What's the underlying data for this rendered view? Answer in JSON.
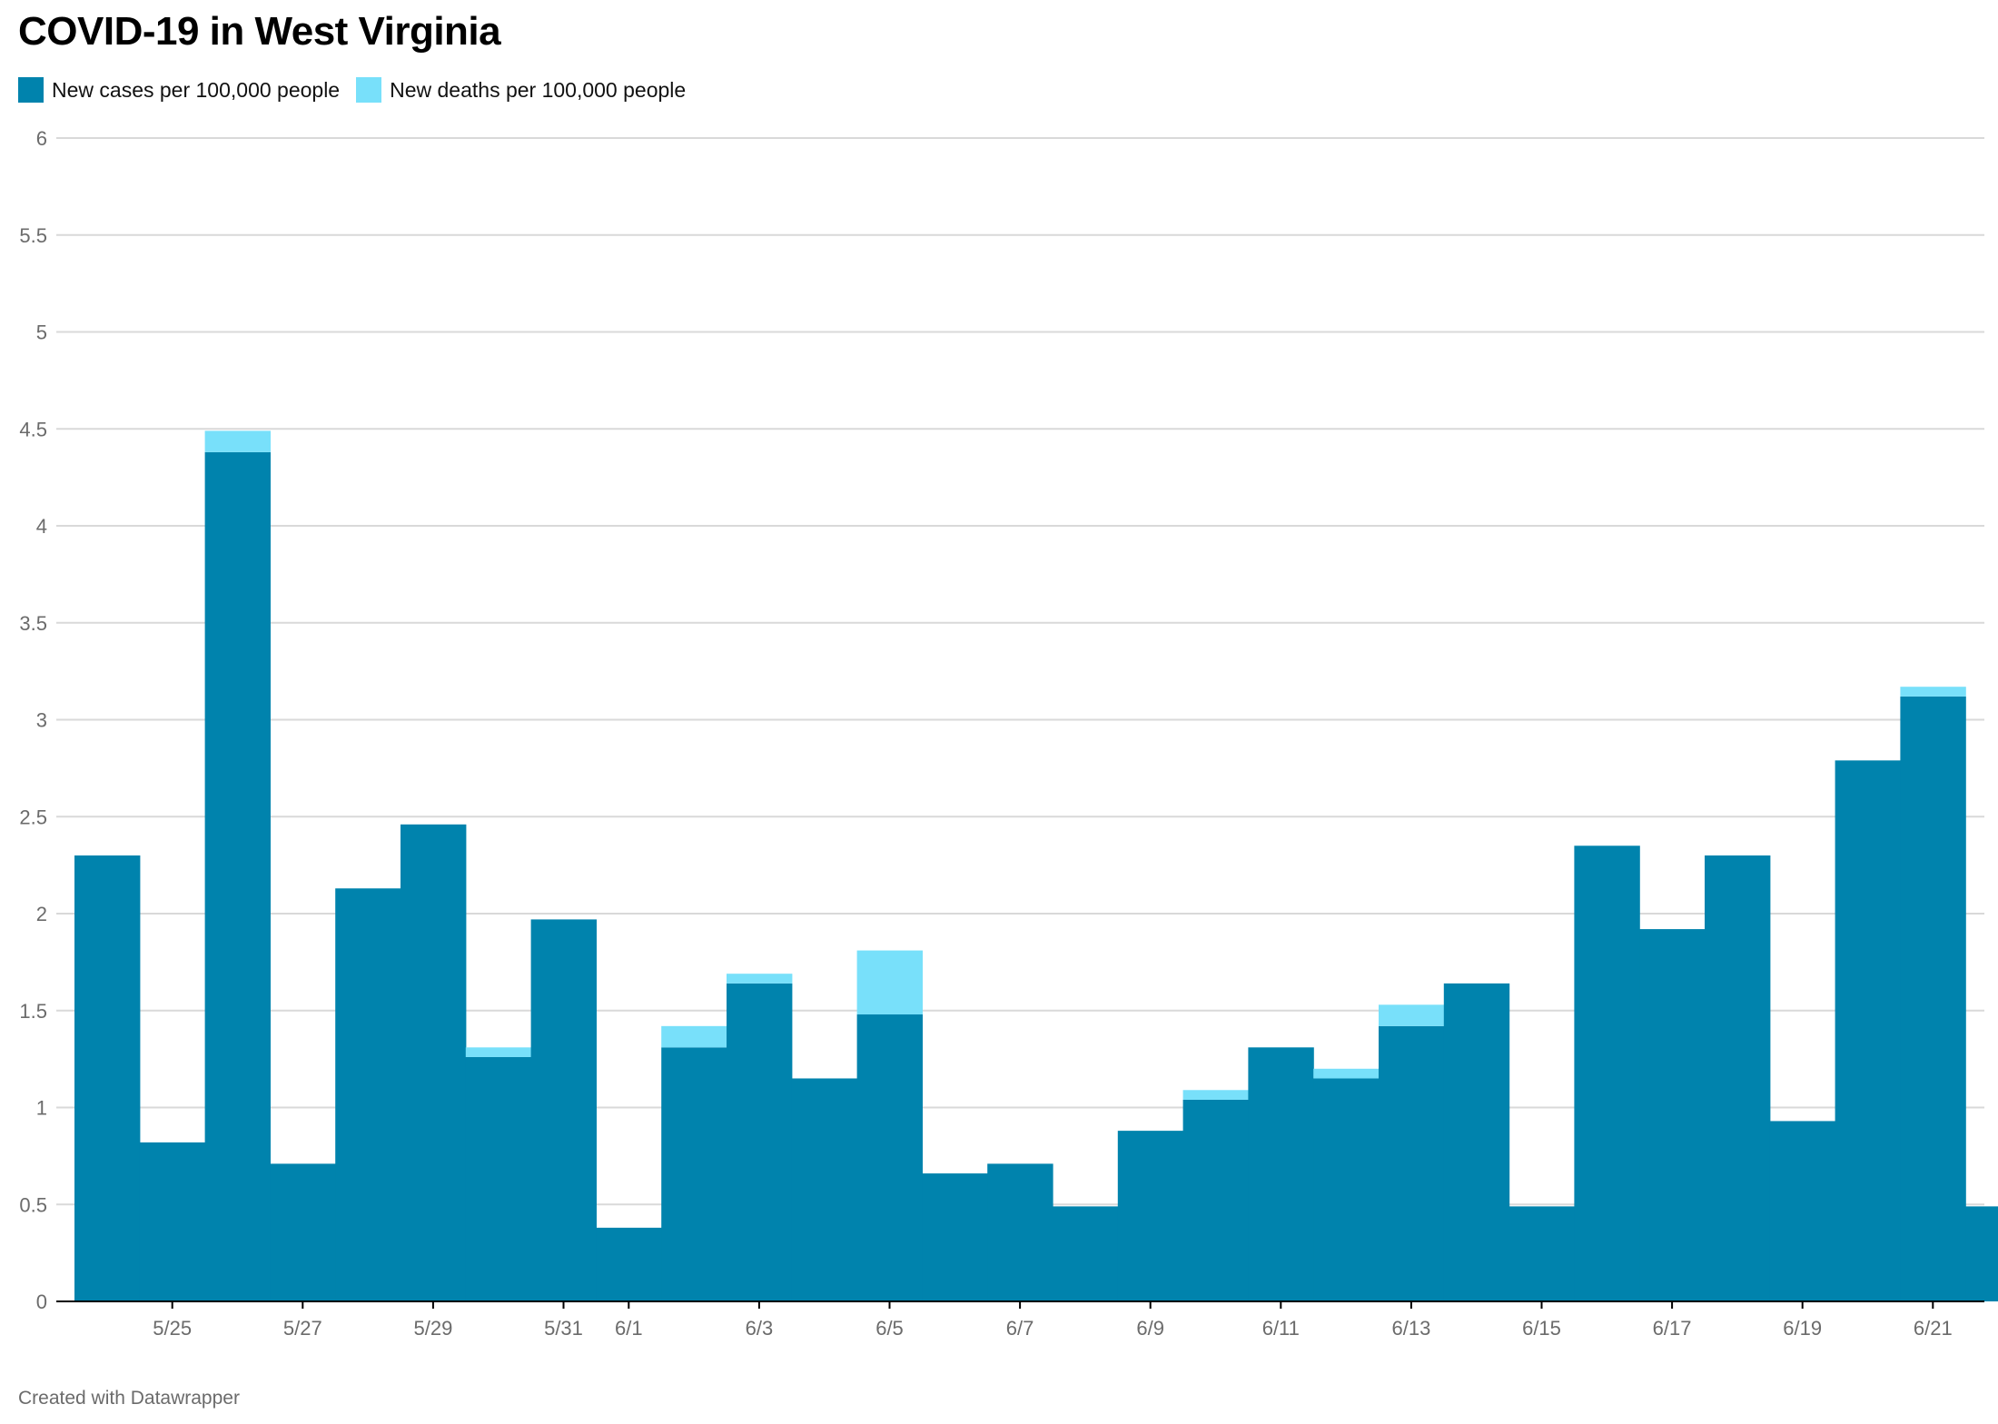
{
  "title": "COVID-19 in West Virginia",
  "footer": "Created with Datawrapper",
  "colors": {
    "cases": "#0083ad",
    "deaths": "#78e0fa",
    "grid": "#d9d9d9",
    "axis": "#000000",
    "label": "#6b6b6b"
  },
  "chart_data": {
    "type": "bar",
    "stacked": true,
    "title": "COVID-19 in West Virginia",
    "xlabel": "",
    "ylabel": "",
    "ylim": [
      0,
      6
    ],
    "yticks": [
      0,
      0.5,
      1,
      1.5,
      2,
      2.5,
      3,
      3.5,
      4,
      4.5,
      5,
      5.5,
      6
    ],
    "grid": true,
    "legend_position": "top-left",
    "categories": [
      "5/24",
      "5/25",
      "5/26",
      "5/27",
      "5/28",
      "5/29",
      "5/30",
      "5/31",
      "6/1",
      "6/2",
      "6/3",
      "6/4",
      "6/5",
      "6/6",
      "6/7",
      "6/8",
      "6/9",
      "6/10",
      "6/11",
      "6/12",
      "6/13",
      "6/14",
      "6/15",
      "6/16",
      "6/17",
      "6/18",
      "6/19",
      "6/20",
      "6/21",
      "6/22"
    ],
    "xtick_labels": [
      "5/25",
      "5/27",
      "5/29",
      "5/31",
      "6/1",
      "6/3",
      "6/5",
      "6/7",
      "6/9",
      "6/11",
      "6/13",
      "6/15",
      "6/17",
      "6/19",
      "6/21"
    ],
    "series": [
      {
        "name": "New cases per 100,000 people",
        "values": [
          2.3,
          0.82,
          4.38,
          0.71,
          2.13,
          2.46,
          1.26,
          1.97,
          0.38,
          1.31,
          1.64,
          1.15,
          1.48,
          0.66,
          0.71,
          0.49,
          0.88,
          1.04,
          1.31,
          1.15,
          1.42,
          1.64,
          0.49,
          2.35,
          1.92,
          2.3,
          0.93,
          2.79,
          3.12,
          0.49
        ]
      },
      {
        "name": "New deaths per 100,000 people",
        "values": [
          0,
          0,
          0.11,
          0,
          0,
          0,
          0.05,
          0,
          0,
          0.11,
          0.05,
          0,
          0.33,
          0,
          0,
          0,
          0,
          0.05,
          0,
          0.05,
          0.11,
          0,
          0,
          0,
          0,
          0,
          0,
          0,
          0.05,
          0
        ]
      }
    ]
  }
}
